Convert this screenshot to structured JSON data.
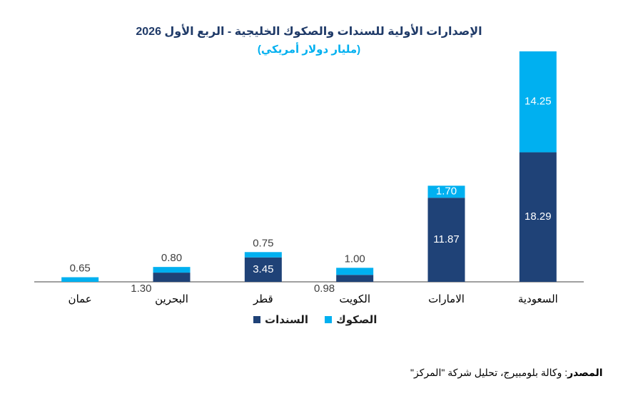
{
  "chart_data": {
    "type": "stacked_bar",
    "title": "الإصدارات الأولية للسندات والصكوك الخليجية - الربع الأول 2026",
    "subtitle": "(مليار دولار أمريكي)",
    "categories": [
      "عمان",
      "البحرين",
      "قطر",
      "الكويت",
      "الامارات",
      "السعودية"
    ],
    "series": [
      {
        "name": "السندات",
        "color": "#1f4277",
        "values": [
          null,
          1.3,
          3.45,
          0.98,
          11.87,
          18.29
        ],
        "value_labels": [
          null,
          "1.30",
          "3.45",
          "0.98",
          "11.87",
          "18.29"
        ]
      },
      {
        "name": "الصكوك",
        "color": "#00b0f0",
        "values": [
          0.65,
          0.8,
          0.75,
          1.0,
          1.7,
          14.25
        ],
        "value_labels": [
          "0.65",
          "0.80",
          "0.75",
          "1.00",
          "1.70",
          "14.25"
        ]
      }
    ],
    "source_label": "المصدر",
    "source_text": ": وكالة بلومبيرج، تحليل شركة \"المركز\""
  }
}
